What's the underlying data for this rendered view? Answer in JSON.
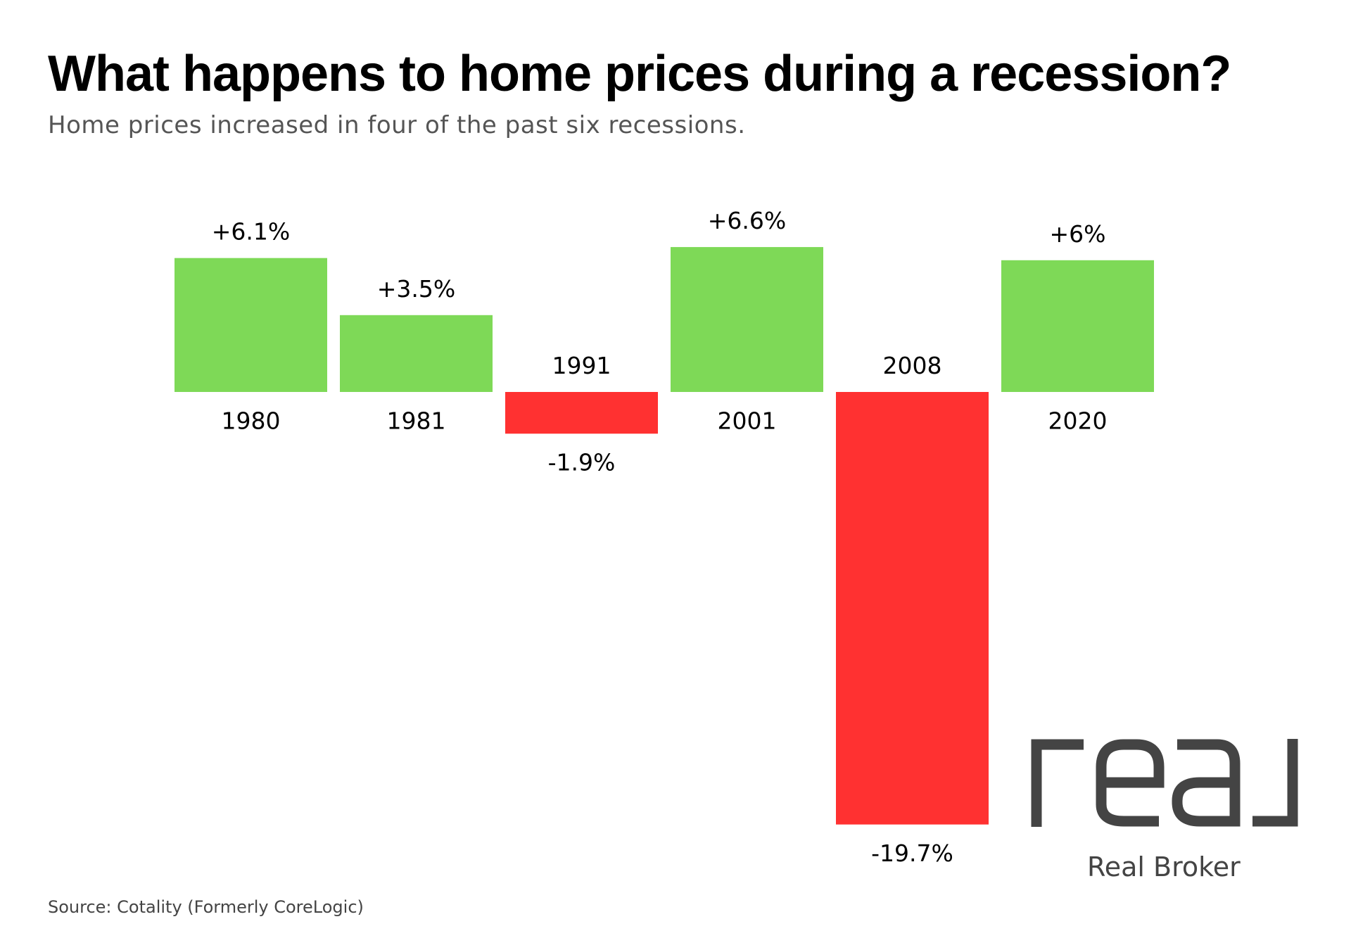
{
  "header": {
    "title": "What happens to home prices during a recession?",
    "subtitle": "Home prices increased in four of the past six recessions."
  },
  "chart_data": {
    "type": "bar",
    "title": "What happens to home prices during a recession?",
    "subtitle": "Home prices increased in four of the past six recessions.",
    "xlabel": "",
    "ylabel": "",
    "categories": [
      "1980",
      "1981",
      "1991",
      "2001",
      "2008",
      "2020"
    ],
    "values": [
      6.1,
      3.5,
      -1.9,
      6.6,
      -19.7,
      6.0
    ],
    "data_labels": [
      "+6.1%",
      "+3.5%",
      "-1.9%",
      "+6.6%",
      "-19.7%",
      "+6%"
    ],
    "ylim": [
      -19.7,
      6.6
    ],
    "grid": false,
    "legend": "none",
    "colors": {
      "positive": "#7ed957",
      "negative": "#ff3131",
      "text": "#000000"
    }
  },
  "brand": {
    "logo_text": "real",
    "name": "Real Broker",
    "logo_color": "#444444"
  },
  "footer": {
    "source": "Source: Cotality (Formerly CoreLogic)"
  }
}
